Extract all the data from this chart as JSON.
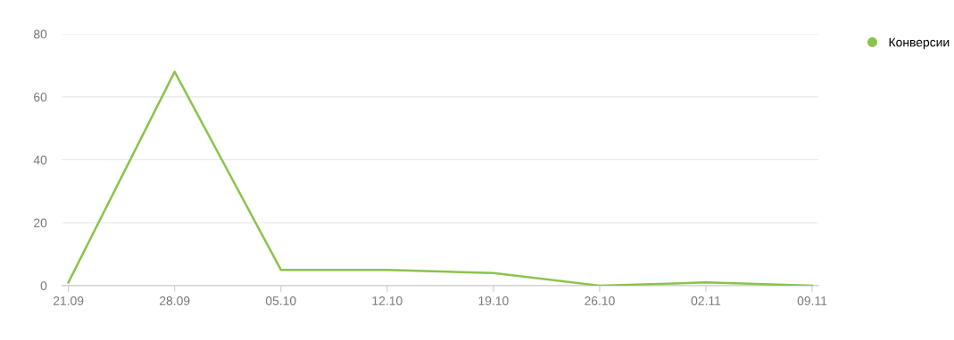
{
  "chart_data": {
    "type": "line",
    "categories": [
      "21.09",
      "28.09",
      "05.10",
      "12.10",
      "19.10",
      "26.10",
      "02.11",
      "09.11"
    ],
    "series": [
      {
        "name": "Конверсии",
        "color": "#8bc34a",
        "values": [
          1,
          68,
          5,
          5,
          4,
          0,
          1,
          0
        ]
      }
    ],
    "ylim": [
      0,
      80
    ],
    "yticks": [
      0,
      20,
      40,
      60,
      80
    ],
    "grid": "y",
    "legend": "top right",
    "marker": "none",
    "line_style": "solid"
  }
}
